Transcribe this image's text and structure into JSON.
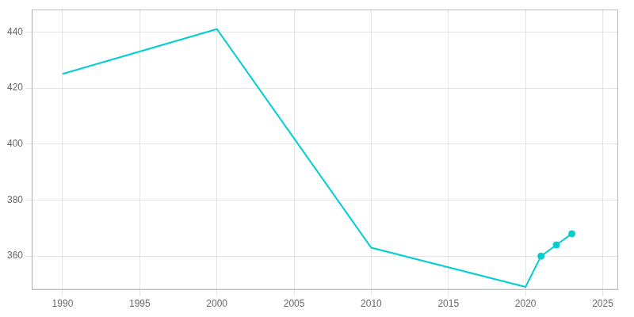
{
  "chart_data": {
    "type": "line",
    "x": [
      1990,
      2000,
      2010,
      2020,
      2021,
      2022,
      2023
    ],
    "series": [
      {
        "color": "#00CED1",
        "line_style": "solid",
        "values": [
          425,
          441,
          363,
          349,
          360,
          364,
          368
        ]
      },
      {
        "type": "scatter",
        "color": "#00CED1",
        "marker": "circle",
        "values": [
          null,
          null,
          null,
          null,
          360,
          364,
          368
        ]
      }
    ],
    "xlim": [
      1988,
      2026
    ],
    "xticks": [
      1990,
      1995,
      2000,
      2005,
      2010,
      2015,
      2020,
      2025
    ],
    "ylim": [
      348,
      448
    ],
    "yticks": [
      360,
      380,
      400,
      420,
      440
    ],
    "grid": true
  }
}
